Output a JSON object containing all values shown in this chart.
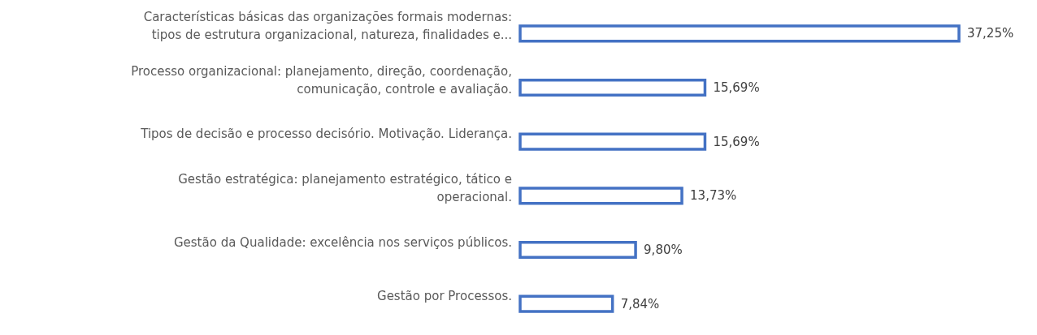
{
  "chart_data": {
    "type": "bar",
    "orientation": "horizontal",
    "color": "#4472c4",
    "categories": [
      "Características básicas das organizações formais modernas:\ntipos de estrutura organizacional, natureza, finalidades e...",
      "Processo organizacional: planejamento, direção, coordenação,\ncomunicação, controle e avaliação.",
      "Tipos de decisão e processo decisório. Motivação. Liderança.",
      "Gestão estratégica: planejamento estratégico, tático e\noperacional.",
      "Gestão da Qualidade: excelência nos serviços públicos.",
      "Gestão por Processos."
    ],
    "values": [
      37.25,
      15.69,
      15.69,
      13.73,
      9.8,
      7.84
    ],
    "value_labels": [
      "37,25%",
      "15,69%",
      "15,69%",
      "13,73%",
      "9,80%",
      "7,84%"
    ],
    "grid": false
  }
}
